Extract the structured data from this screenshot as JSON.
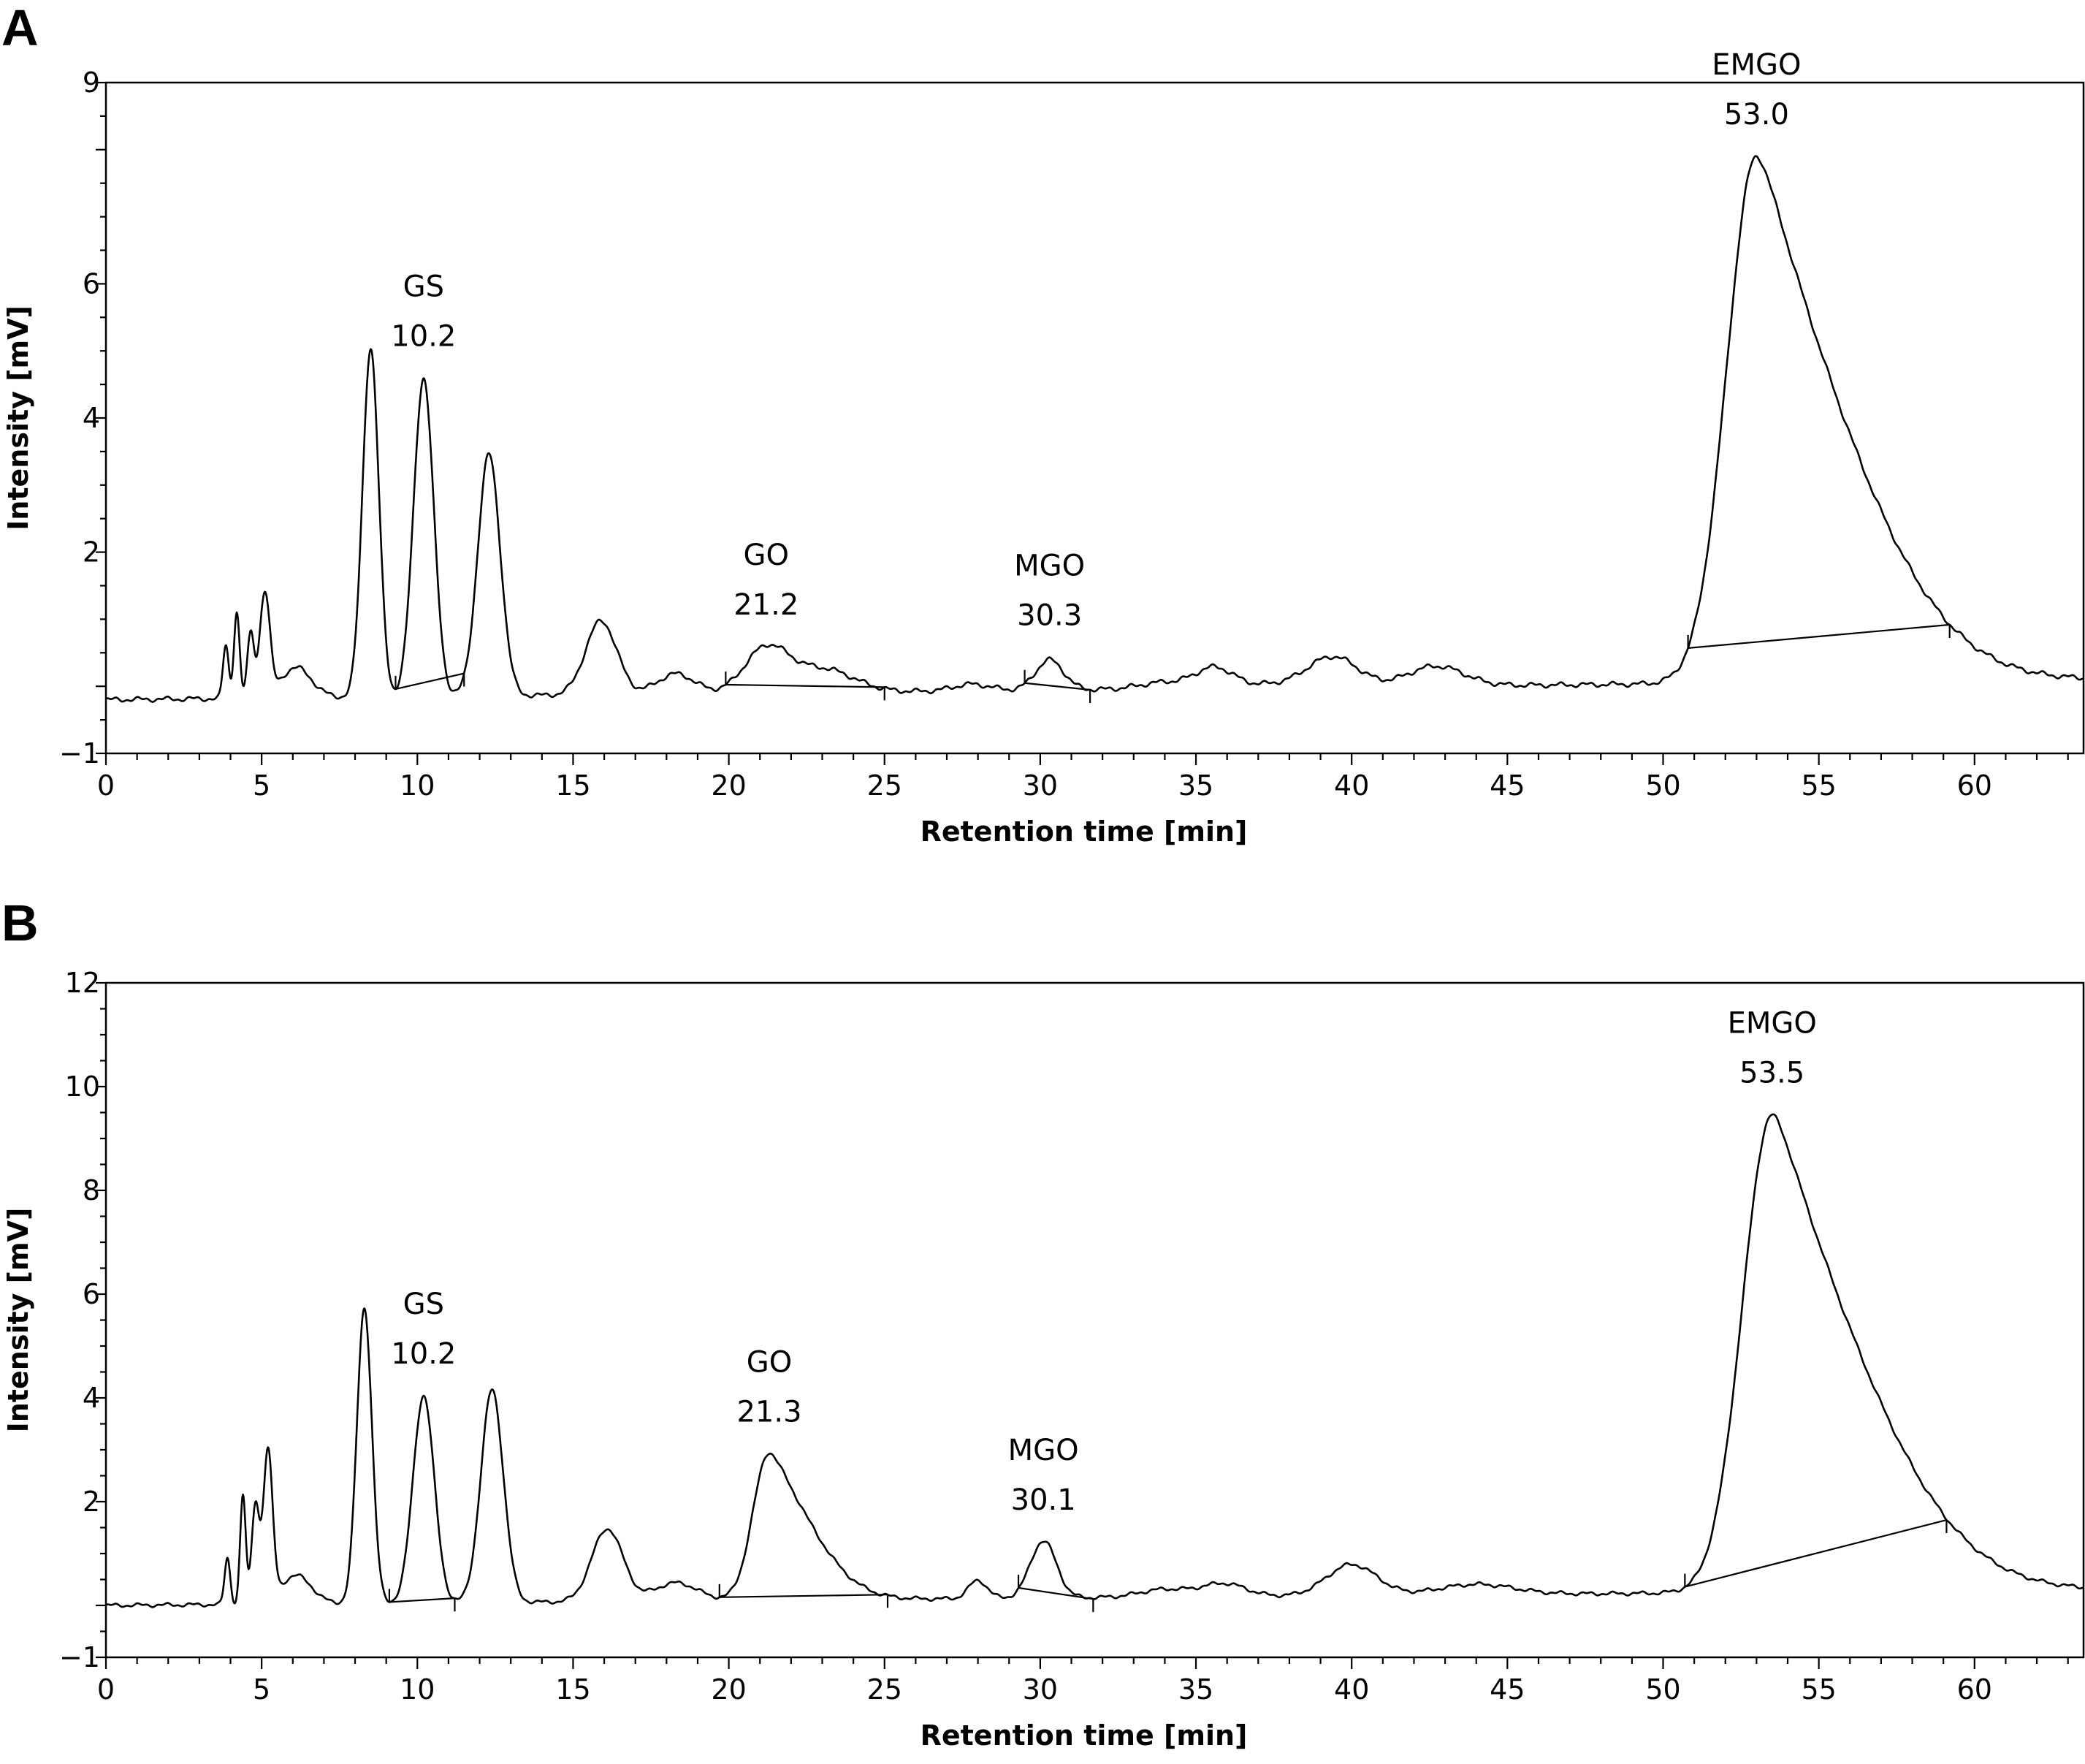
{
  "chart_data": [
    {
      "panel": "A",
      "type": "line",
      "xlabel": "Retention time [min]",
      "ylabel": "Intensity [mV]",
      "xlim": [
        0,
        63.5
      ],
      "ylim": [
        -1,
        9
      ],
      "x_ticks": [
        0,
        5,
        10,
        15,
        20,
        25,
        30,
        35,
        40,
        45,
        50,
        55,
        60
      ],
      "y_ticks": [
        -1,
        2,
        4,
        6,
        9
      ],
      "y_tick_labels": [
        "−1",
        "2",
        "4",
        "6",
        "9"
      ],
      "baseline_start": -0.2,
      "baseline_end": 0.1,
      "peaks": [
        {
          "t": 3.85,
          "h": 0.8,
          "w": 0.09
        },
        {
          "t": 4.2,
          "h": 1.3,
          "w": 0.09
        },
        {
          "t": 4.65,
          "h": 0.95,
          "w": 0.11
        },
        {
          "t": 5.1,
          "h": 1.55,
          "w": 0.16
        },
        {
          "t": 6.1,
          "h": 0.45,
          "w": 0.5
        },
        {
          "t": 8.5,
          "h": 5.2,
          "w": 0.26
        },
        {
          "t": 10.2,
          "h": 4.75,
          "w": 0.32
        },
        {
          "t": 12.3,
          "h": 3.6,
          "w": 0.36
        },
        {
          "t": 15.9,
          "h": 1.1,
          "w": 0.5
        },
        {
          "t": 18.3,
          "h": 0.3,
          "w": 0.6
        },
        {
          "t": 21.2,
          "h": 0.65,
          "w": 0.7
        },
        {
          "t": 23.0,
          "h": 0.35,
          "w": 1.0
        },
        {
          "t": 27.8,
          "h": 0.1,
          "w": 0.6
        },
        {
          "t": 30.3,
          "h": 0.45,
          "w": 0.45
        },
        {
          "t": 34.0,
          "h": 0.1,
          "w": 0.8
        },
        {
          "t": 35.6,
          "h": 0.3,
          "w": 0.6
        },
        {
          "t": 37.5,
          "h": 0.05,
          "w": 1.0
        },
        {
          "t": 39.4,
          "h": 0.45,
          "w": 0.8
        },
        {
          "t": 42.7,
          "h": 0.3,
          "w": 0.9
        },
        {
          "t": 53.0,
          "h": 7.85,
          "w": 0.95,
          "tail": 2.2
        }
      ],
      "labeled_peaks": [
        {
          "name": "GS",
          "rt": "10.2",
          "x": 10.2
        },
        {
          "name": "GO",
          "rt": "21.2",
          "x": 21.2
        },
        {
          "name": "MGO",
          "rt": "30.3",
          "x": 30.3
        },
        {
          "name": "EMGO",
          "rt": "53.0",
          "x": 53.0
        }
      ],
      "integration_baselines": [
        [
          9.3,
          11.5
        ],
        [
          19.9,
          25.0
        ],
        [
          29.5,
          31.6
        ],
        [
          50.8,
          59.2
        ]
      ]
    },
    {
      "panel": "B",
      "type": "line",
      "xlabel": "Retention time [min]",
      "ylabel": "Intensity [mV]",
      "xlim": [
        0,
        63.5
      ],
      "ylim": [
        -1,
        12
      ],
      "x_ticks": [
        0,
        5,
        10,
        15,
        20,
        25,
        30,
        35,
        40,
        45,
        50,
        55,
        60
      ],
      "y_ticks": [
        -1,
        2,
        4,
        6,
        8,
        10,
        12
      ],
      "y_tick_labels": [
        "−1",
        "2",
        "4",
        "6",
        "8",
        "10",
        "12"
      ],
      "baseline_start": 0.0,
      "baseline_end": 0.3,
      "peaks": [
        {
          "t": 3.9,
          "h": 0.9,
          "w": 0.09
        },
        {
          "t": 4.4,
          "h": 2.1,
          "w": 0.09
        },
        {
          "t": 4.8,
          "h": 1.9,
          "w": 0.12
        },
        {
          "t": 5.2,
          "h": 2.9,
          "w": 0.15
        },
        {
          "t": 6.1,
          "h": 0.55,
          "w": 0.5
        },
        {
          "t": 8.3,
          "h": 5.7,
          "w": 0.24
        },
        {
          "t": 10.2,
          "h": 4.0,
          "w": 0.34
        },
        {
          "t": 12.4,
          "h": 4.1,
          "w": 0.36
        },
        {
          "t": 16.1,
          "h": 1.4,
          "w": 0.5
        },
        {
          "t": 18.3,
          "h": 0.35,
          "w": 0.7
        },
        {
          "t": 21.3,
          "h": 2.85,
          "w": 0.52,
          "tail": 0.9
        },
        {
          "t": 28.0,
          "h": 0.35,
          "w": 0.3
        },
        {
          "t": 30.1,
          "h": 1.1,
          "w": 0.42
        },
        {
          "t": 34.0,
          "h": 0.15,
          "w": 0.8
        },
        {
          "t": 35.9,
          "h": 0.25,
          "w": 0.7
        },
        {
          "t": 40.0,
          "h": 0.6,
          "w": 0.8
        },
        {
          "t": 44.0,
          "h": 0.2,
          "w": 1.2
        },
        {
          "t": 53.5,
          "h": 9.2,
          "w": 0.95,
          "tail": 2.2
        }
      ],
      "labeled_peaks": [
        {
          "name": "GS",
          "rt": "10.2",
          "x": 10.2
        },
        {
          "name": "GO",
          "rt": "21.3",
          "x": 21.3
        },
        {
          "name": "MGO",
          "rt": "30.1",
          "x": 30.1
        },
        {
          "name": "EMGO",
          "rt": "53.5",
          "x": 53.5
        }
      ],
      "integration_baselines": [
        [
          9.1,
          11.2
        ],
        [
          19.7,
          25.1
        ],
        [
          29.3,
          31.7
        ],
        [
          50.7,
          59.1
        ]
      ]
    }
  ]
}
